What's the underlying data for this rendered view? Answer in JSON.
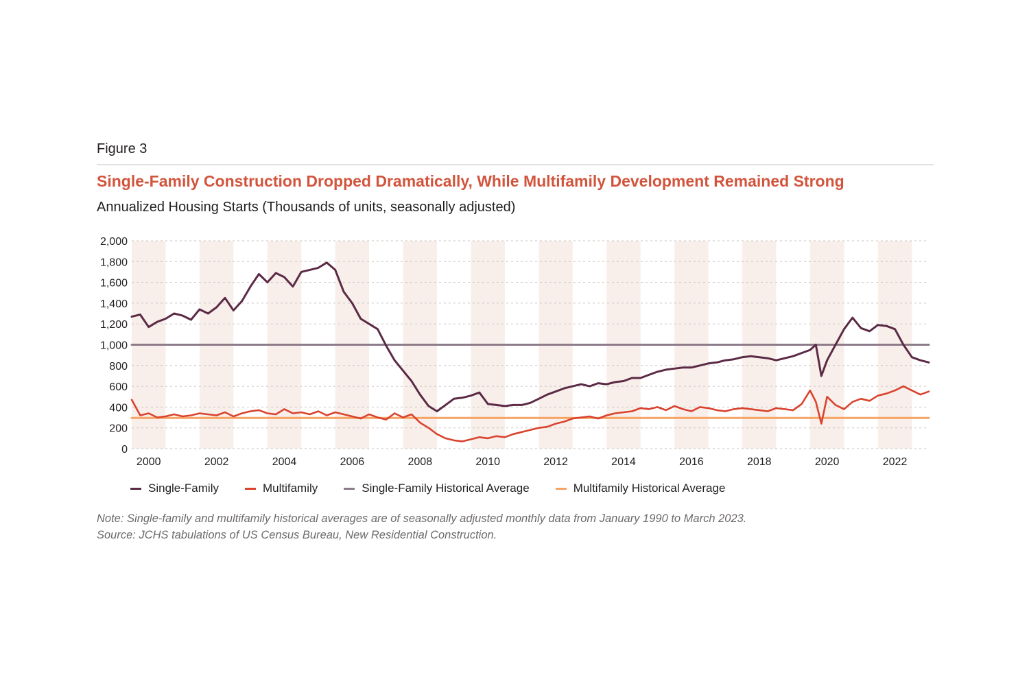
{
  "figure_label": "Figure 3",
  "title": "Single-Family Construction Dropped Dramatically, While Multifamily Development Remained Strong",
  "subtitle": "Annualized Housing Starts (Thousands of units, seasonally adjusted)",
  "note": "Note: Single-family and multifamily historical averages are of seasonally adjusted monthly data from January 1990 to March 2023.",
  "source": "Source: JCHS tabulations of US Census Bureau, New Residential Construction.",
  "legend": [
    {
      "label": "Single-Family",
      "color": "#5b2a45"
    },
    {
      "label": "Multifamily",
      "color": "#d9432e"
    },
    {
      "label": "Single-Family Historical Average",
      "color": "#8e7b8a"
    },
    {
      "label": "Multifamily Historical Average",
      "color": "#f6a364"
    }
  ],
  "chart_data": {
    "type": "line",
    "xlabel": "",
    "ylabel": "",
    "xlim": [
      2000.0,
      2023.5
    ],
    "ylim": [
      0,
      2000
    ],
    "y_ticks": [
      "0",
      "200",
      "400",
      "600",
      "800",
      "1,000",
      "1,200",
      "1,400",
      "1,600",
      "1,800",
      "2,000"
    ],
    "x_ticks": [
      "2000",
      "2002",
      "2004",
      "2006",
      "2008",
      "2010",
      "2012",
      "2014",
      "2016",
      "2018",
      "2020",
      "2022"
    ],
    "grid": "horizontal dotted",
    "shaded_bands": "alternating years shaded",
    "series": [
      {
        "name": "Single-Family",
        "color": "#5b2a45",
        "x": [
          2000.0,
          2000.25,
          2000.5,
          2000.75,
          2001.0,
          2001.25,
          2001.5,
          2001.75,
          2002.0,
          2002.25,
          2002.5,
          2002.75,
          2003.0,
          2003.25,
          2003.5,
          2003.75,
          2004.0,
          2004.25,
          2004.5,
          2004.75,
          2005.0,
          2005.25,
          2005.5,
          2005.75,
          2006.0,
          2006.25,
          2006.5,
          2006.75,
          2007.0,
          2007.25,
          2007.5,
          2007.75,
          2008.0,
          2008.25,
          2008.5,
          2008.75,
          2009.0,
          2009.25,
          2009.5,
          2009.75,
          2010.0,
          2010.25,
          2010.5,
          2010.75,
          2011.0,
          2011.25,
          2011.5,
          2011.75,
          2012.0,
          2012.25,
          2012.5,
          2012.75,
          2013.0,
          2013.25,
          2013.5,
          2013.75,
          2014.0,
          2014.25,
          2014.5,
          2014.75,
          2015.0,
          2015.25,
          2015.5,
          2015.75,
          2016.0,
          2016.25,
          2016.5,
          2016.75,
          2017.0,
          2017.25,
          2017.5,
          2017.75,
          2018.0,
          2018.25,
          2018.5,
          2018.75,
          2019.0,
          2019.25,
          2019.5,
          2019.75,
          2020.0,
          2020.17,
          2020.33,
          2020.5,
          2020.75,
          2021.0,
          2021.25,
          2021.5,
          2021.75,
          2022.0,
          2022.25,
          2022.5,
          2022.75,
          2023.0,
          2023.25,
          2023.5
        ],
        "values": [
          1270,
          1290,
          1170,
          1220,
          1250,
          1300,
          1280,
          1240,
          1340,
          1300,
          1360,
          1450,
          1330,
          1420,
          1560,
          1680,
          1600,
          1690,
          1650,
          1560,
          1700,
          1720,
          1740,
          1790,
          1720,
          1510,
          1400,
          1250,
          1200,
          1150,
          990,
          850,
          750,
          650,
          520,
          410,
          360,
          420,
          480,
          490,
          510,
          540,
          430,
          420,
          410,
          420,
          420,
          440,
          480,
          520,
          550,
          580,
          600,
          620,
          600,
          630,
          620,
          640,
          650,
          680,
          680,
          710,
          740,
          760,
          770,
          780,
          780,
          800,
          820,
          830,
          850,
          860,
          880,
          890,
          880,
          870,
          850,
          870,
          890,
          920,
          950,
          1000,
          700,
          850,
          1000,
          1150,
          1260,
          1160,
          1130,
          1190,
          1180,
          1150,
          1000,
          880,
          850,
          830
        ]
      },
      {
        "name": "Multifamily",
        "color": "#d9432e",
        "x": [
          2000.0,
          2000.25,
          2000.5,
          2000.75,
          2001.0,
          2001.25,
          2001.5,
          2001.75,
          2002.0,
          2002.25,
          2002.5,
          2002.75,
          2003.0,
          2003.25,
          2003.5,
          2003.75,
          2004.0,
          2004.25,
          2004.5,
          2004.75,
          2005.0,
          2005.25,
          2005.5,
          2005.75,
          2006.0,
          2006.25,
          2006.5,
          2006.75,
          2007.0,
          2007.25,
          2007.5,
          2007.75,
          2008.0,
          2008.25,
          2008.5,
          2008.75,
          2009.0,
          2009.25,
          2009.5,
          2009.75,
          2010.0,
          2010.25,
          2010.5,
          2010.75,
          2011.0,
          2011.25,
          2011.5,
          2011.75,
          2012.0,
          2012.25,
          2012.5,
          2012.75,
          2013.0,
          2013.25,
          2013.5,
          2013.75,
          2014.0,
          2014.25,
          2014.5,
          2014.75,
          2015.0,
          2015.25,
          2015.5,
          2015.75,
          2016.0,
          2016.25,
          2016.5,
          2016.75,
          2017.0,
          2017.25,
          2017.5,
          2017.75,
          2018.0,
          2018.25,
          2018.5,
          2018.75,
          2019.0,
          2019.25,
          2019.5,
          2019.75,
          2020.0,
          2020.17,
          2020.33,
          2020.5,
          2020.75,
          2021.0,
          2021.25,
          2021.5,
          2021.75,
          2022.0,
          2022.25,
          2022.5,
          2022.75,
          2023.0,
          2023.25,
          2023.5
        ],
        "values": [
          470,
          320,
          340,
          300,
          310,
          330,
          310,
          320,
          340,
          330,
          320,
          350,
          310,
          340,
          360,
          370,
          340,
          330,
          380,
          340,
          350,
          330,
          360,
          320,
          350,
          330,
          310,
          290,
          330,
          300,
          280,
          340,
          300,
          330,
          250,
          200,
          140,
          100,
          80,
          70,
          90,
          110,
          100,
          120,
          110,
          140,
          160,
          180,
          200,
          210,
          240,
          260,
          290,
          300,
          310,
          290,
          320,
          340,
          350,
          360,
          390,
          380,
          400,
          370,
          410,
          380,
          360,
          400,
          390,
          370,
          360,
          380,
          390,
          380,
          370,
          360,
          390,
          380,
          370,
          430,
          560,
          450,
          240,
          500,
          420,
          380,
          450,
          480,
          460,
          510,
          530,
          560,
          600,
          560,
          520,
          550
        ]
      },
      {
        "name": "Single-Family Historical Average",
        "color": "#8e7b8a",
        "x": [
          2000.0,
          2023.5
        ],
        "values": [
          1000,
          1000
        ]
      },
      {
        "name": "Multifamily Historical Average",
        "color": "#f6a364",
        "x": [
          2000.0,
          2023.5
        ],
        "values": [
          295,
          295
        ]
      }
    ]
  }
}
